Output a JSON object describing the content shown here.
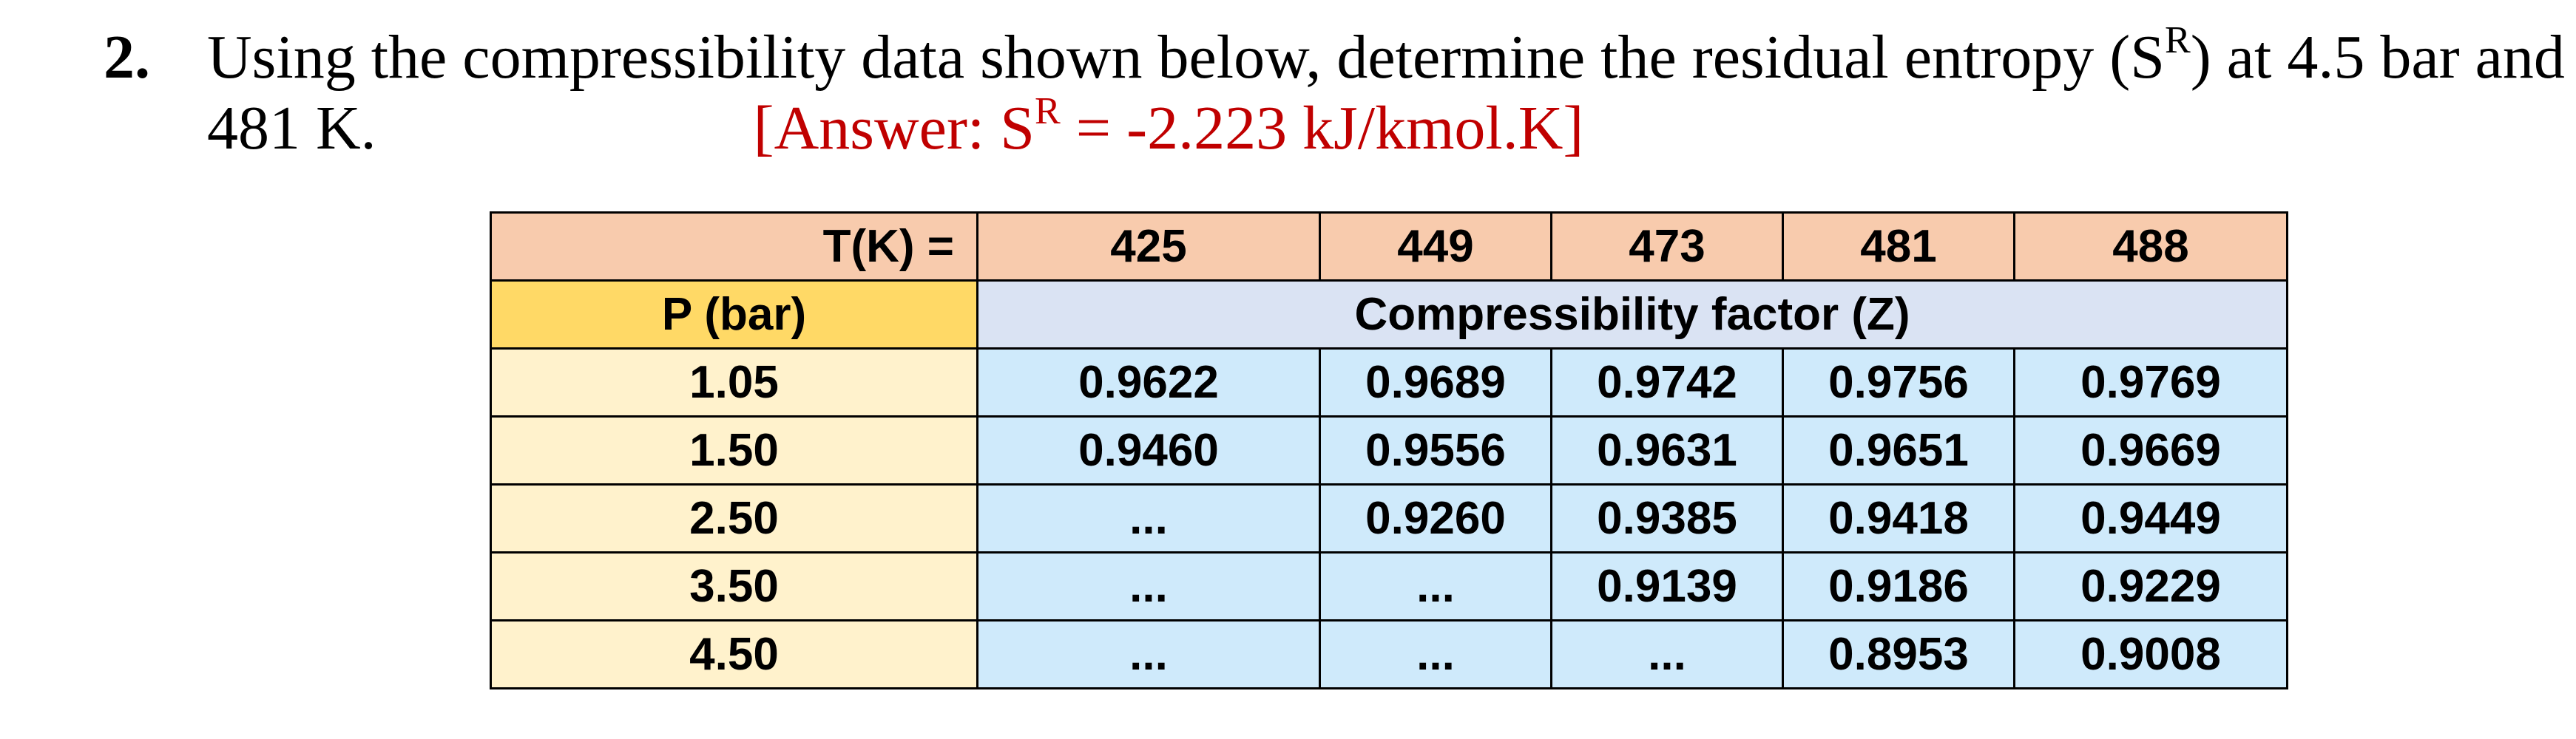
{
  "question": {
    "number": "2.",
    "line1_before": "Using the compressibility data shown below, determine the residual entropy (S",
    "line1_sup": "R",
    "line1_after": ") at 4.5 bar and",
    "line2_text": "481 K.",
    "answer_before": "[Answer: S",
    "answer_sup": "R",
    "answer_after": " = -2.223 kJ/kmol.K]"
  },
  "table": {
    "corner_label": "T(K) =",
    "temperatures": [
      "425",
      "449",
      "473",
      "481",
      "488"
    ],
    "pressure_header": "P (bar)",
    "z_header": "Compressibility factor (Z)",
    "rows": [
      {
        "pressure": "1.05",
        "values": [
          "0.9622",
          "0.9689",
          "0.9742",
          "0.9756",
          "0.9769"
        ]
      },
      {
        "pressure": "1.50",
        "values": [
          "0.9460",
          "0.9556",
          "0.9631",
          "0.9651",
          "0.9669"
        ]
      },
      {
        "pressure": "2.50",
        "values": [
          "...",
          "0.9260",
          "0.9385",
          "0.9418",
          "0.9449"
        ]
      },
      {
        "pressure": "3.50",
        "values": [
          "...",
          "...",
          "0.9139",
          "0.9186",
          "0.9229"
        ]
      },
      {
        "pressure": "4.50",
        "values": [
          "...",
          "...",
          "...",
          "0.8953",
          "0.9008"
        ]
      }
    ]
  },
  "colors": {
    "header_peach": "#f8cbad",
    "pressure_header_gold": "#ffd966",
    "pressure_cells_cream": "#fff2cc",
    "z_header_lavender": "#dae3f3",
    "value_cells_blue": "#cfeafb",
    "answer_red": "#c00000"
  }
}
